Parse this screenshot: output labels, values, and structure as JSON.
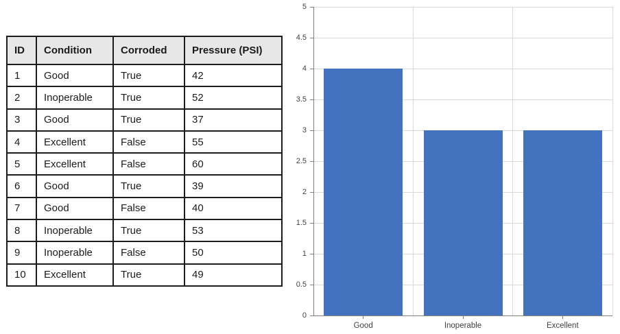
{
  "table": {
    "headers": [
      "ID",
      "Condition",
      "Corroded",
      "Pressure (PSI)"
    ],
    "rows": [
      [
        "1",
        "Good",
        "True",
        "42"
      ],
      [
        "2",
        "Inoperable",
        "True",
        "52"
      ],
      [
        "3",
        "Good",
        "True",
        "37"
      ],
      [
        "4",
        "Excellent",
        "False",
        "55"
      ],
      [
        "5",
        "Excellent",
        "False",
        "60"
      ],
      [
        "6",
        "Good",
        "True",
        "39"
      ],
      [
        "7",
        "Good",
        "False",
        "40"
      ],
      [
        "8",
        "Inoperable",
        "True",
        "53"
      ],
      [
        "9",
        "Inoperable",
        "False",
        "50"
      ],
      [
        "10",
        "Excellent",
        "True",
        "49"
      ]
    ],
    "header_bg": "#e7e7e7",
    "border_color": "#1c1c1c"
  },
  "chart_data": {
    "type": "bar",
    "categories": [
      "Good",
      "Inoperable",
      "Excellent"
    ],
    "values": [
      4,
      3,
      3
    ],
    "title": "",
    "xlabel": "",
    "ylabel": "",
    "ylim": [
      0,
      5
    ],
    "ytick_step": 0.5,
    "ytick_labels": [
      "0",
      "0.5",
      "1",
      "1.5",
      "2",
      "2.5",
      "3",
      "3.5",
      "4",
      "4.5",
      "5"
    ],
    "grid": true,
    "legend": "none",
    "bar_color": "#4372be",
    "gridline_color": "#d9d9d9",
    "axis_color": "#7f7f7f",
    "label_color": "#404040"
  }
}
